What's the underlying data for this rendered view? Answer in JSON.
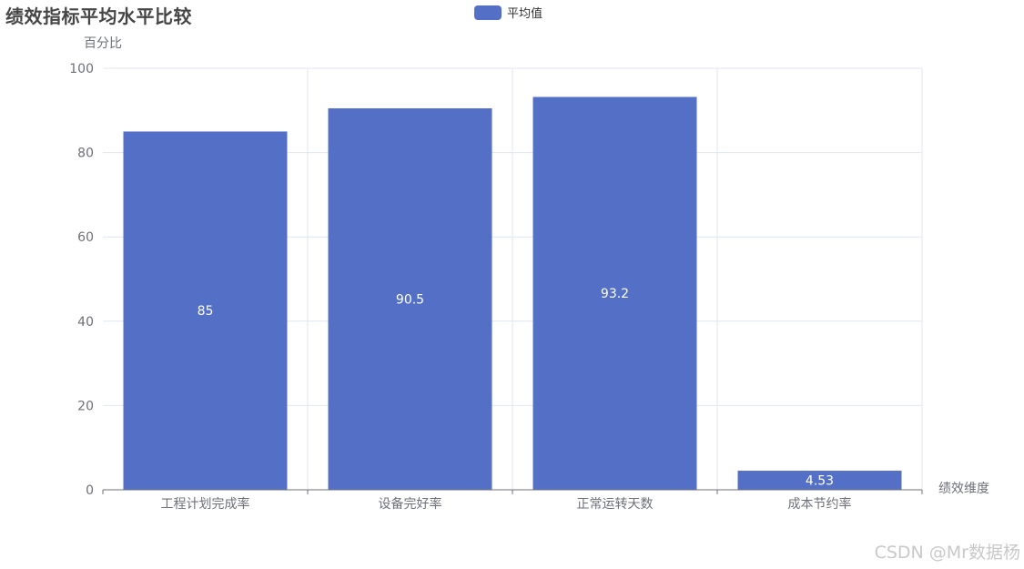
{
  "chart_data": {
    "type": "bar",
    "title": "绩效指标平均水平比较",
    "xlabel": "绩效维度",
    "ylabel": "百分比",
    "categories": [
      "工程计划完成率",
      "设备完好率",
      "正常运转天数",
      "成本节约率"
    ],
    "series": [
      {
        "name": "平均值",
        "values": [
          85,
          90.5,
          93.2,
          4.53
        ]
      }
    ],
    "value_labels": [
      "85",
      "90.5",
      "93.2",
      "4.53"
    ],
    "ylim": [
      0,
      100
    ],
    "yticks": [
      "0",
      "20",
      "40",
      "60",
      "80",
      "100"
    ],
    "grid": true,
    "legend_position": "top-center",
    "colors": {
      "bar": "#5470c6",
      "grid": "#e0e6f1",
      "axis": "#6e7079",
      "label": "#ffffff"
    }
  },
  "watermark": "CSDN @Mr数据杨"
}
